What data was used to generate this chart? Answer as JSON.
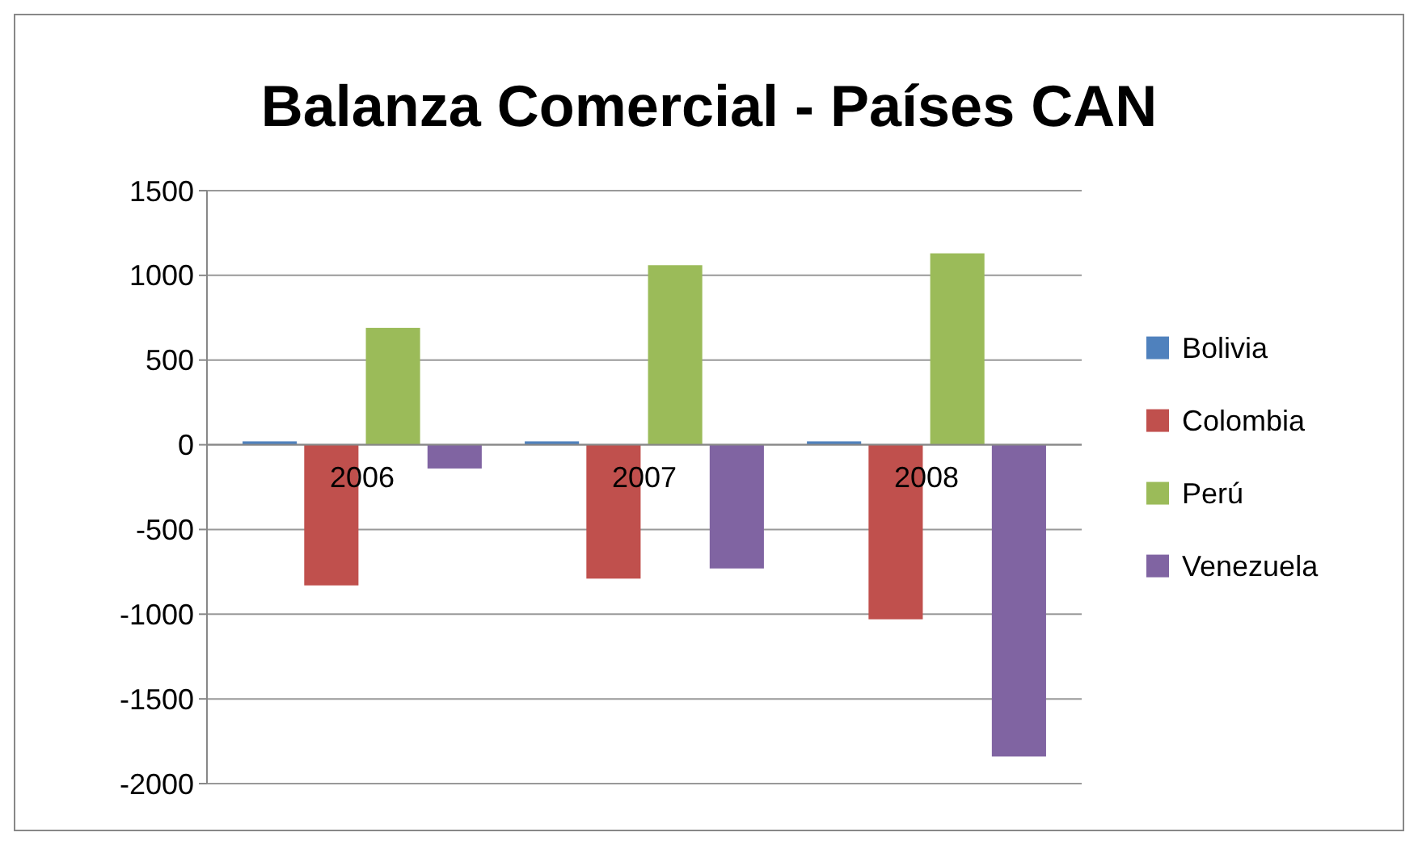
{
  "chart_data": {
    "type": "bar",
    "title": "Balanza Comercial - Países CAN",
    "categories": [
      "2006",
      "2007",
      "2008"
    ],
    "series": [
      {
        "name": "Bolivia",
        "color": "#4f81bd",
        "values": [
          20,
          20,
          20
        ]
      },
      {
        "name": "Colombia",
        "color": "#c0504d",
        "values": [
          -830,
          -790,
          -1030
        ]
      },
      {
        "name": "Perú",
        "color": "#9bbb59",
        "values": [
          690,
          1060,
          1130
        ]
      },
      {
        "name": "Venezuela",
        "color": "#8064a2",
        "values": [
          -140,
          -730,
          -1840
        ]
      }
    ],
    "ylim": [
      -2000,
      1500
    ],
    "yticks": [
      -2000,
      -1500,
      -1000,
      -500,
      0,
      500,
      1000,
      1500
    ],
    "grid": "y",
    "legend": "right"
  }
}
